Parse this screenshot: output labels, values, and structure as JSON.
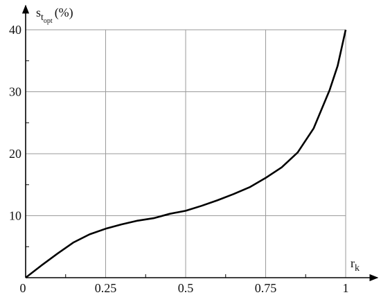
{
  "chart_data": {
    "type": "line",
    "ylabel": "s",
    "ylabel_sub": "t",
    "ylabel_subsub": "opt",
    "ylabel_unit": "(%)",
    "xlabel": "r",
    "xlabel_sub": "k",
    "x": [
      0,
      0.05,
      0.1,
      0.15,
      0.2,
      0.25,
      0.3,
      0.35,
      0.4,
      0.45,
      0.5,
      0.55,
      0.6,
      0.65,
      0.7,
      0.75,
      0.8,
      0.85,
      0.9,
      0.95,
      0.975,
      1
    ],
    "series": [
      {
        "color": "#000000",
        "values": [
          0,
          2.0,
          3.9,
          5.7,
          7.0,
          7.9,
          8.6,
          9.2,
          9.6,
          10.3,
          10.8,
          11.6,
          12.5,
          13.5,
          14.6,
          16.1,
          17.8,
          20.2,
          24.1,
          30.3,
          34.2,
          40
        ]
      }
    ],
    "xlim": [
      0,
      1
    ],
    "ylim": [
      0,
      40
    ],
    "xticks": [
      0,
      0.25,
      0.5,
      0.75,
      1
    ],
    "yticks": [
      10,
      20,
      30,
      40
    ],
    "grid": true
  }
}
